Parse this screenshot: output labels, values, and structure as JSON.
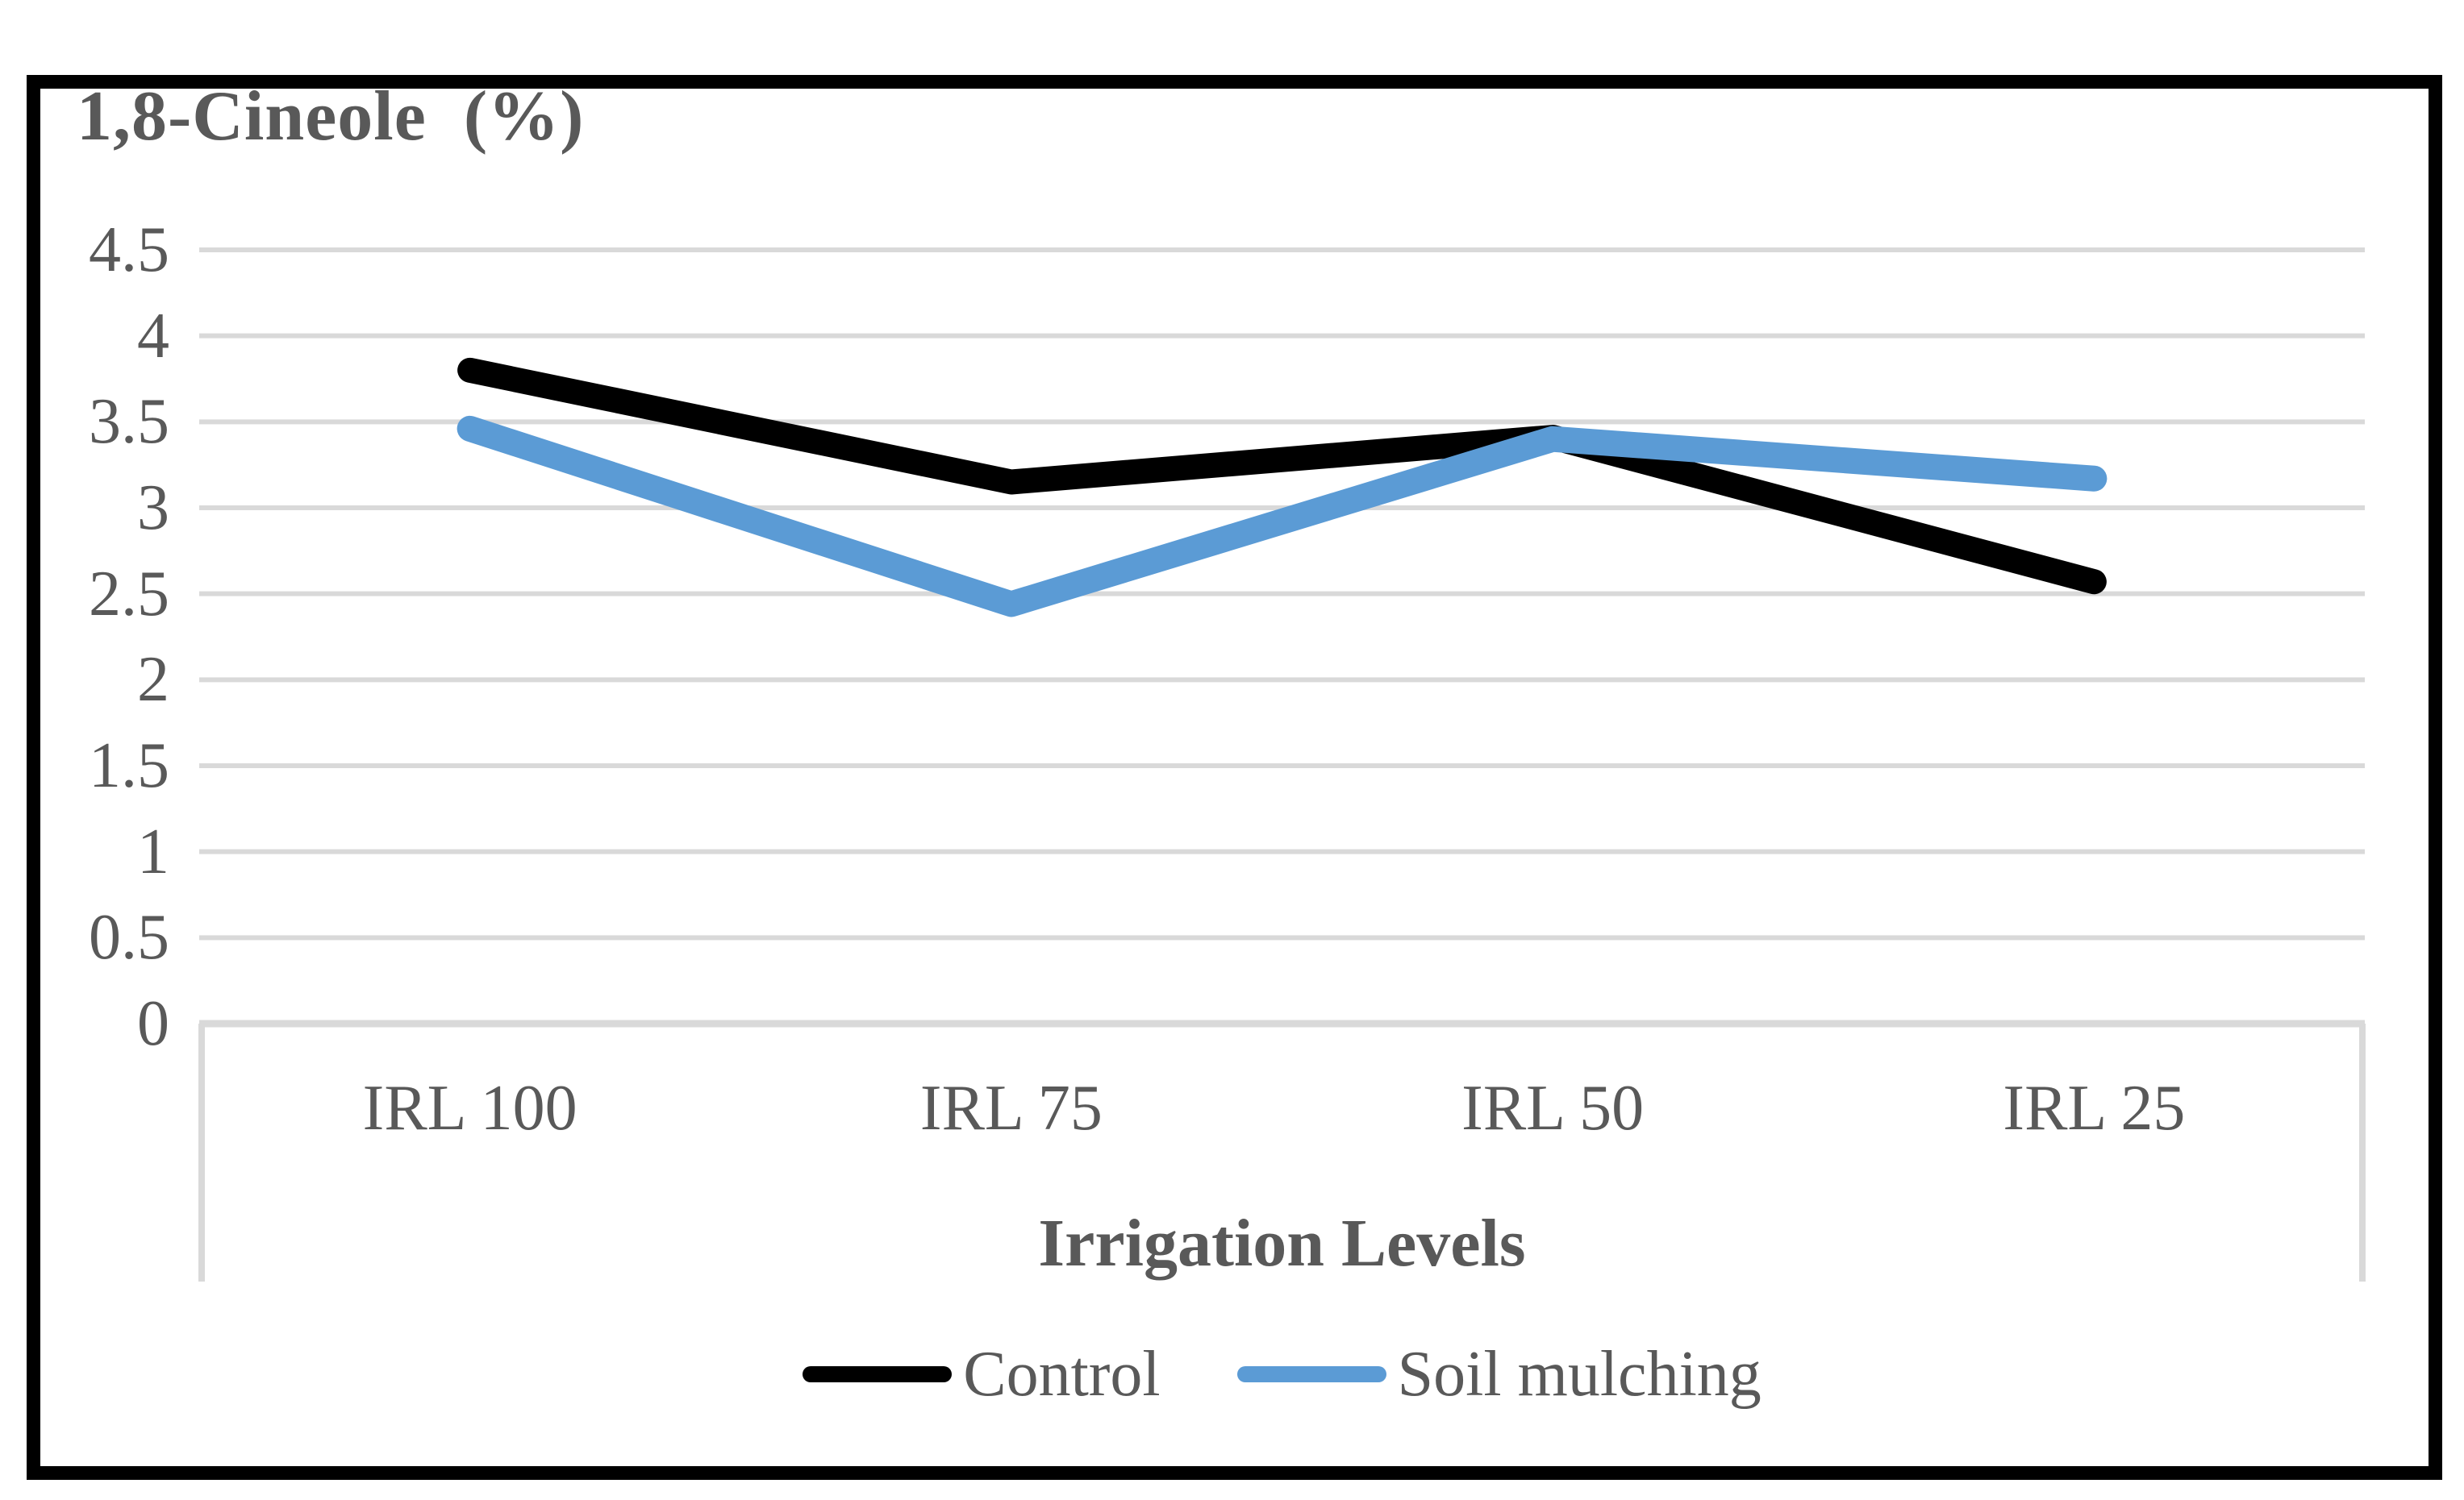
{
  "colors": {
    "background": "#FFFFFF",
    "border": "#000000",
    "text": "#595959",
    "gridline": "#D9D9D9",
    "axis_frame": "#D9D9D9",
    "control_line": "#000000",
    "soil_mulching_line": "#5B9BD5"
  },
  "chart_data": {
    "type": "line",
    "title": "1,8-Cineole  (%)",
    "xlabel": "Irrigation Levels",
    "categories": [
      "IRL 100",
      "IRL 75",
      "IRL 50",
      "IRL 25"
    ],
    "series": [
      {
        "name": "Control",
        "color": "#000000",
        "values": [
          3.8,
          3.15,
          3.41,
          2.57
        ]
      },
      {
        "name": "Soil mulching",
        "color": "#5B9BD5",
        "values": [
          3.46,
          2.44,
          3.4,
          3.17
        ]
      }
    ],
    "ylim": [
      0,
      4.5
    ],
    "ytick_step": 0.5,
    "ytick_labels": [
      "4.5",
      "4",
      "3.5",
      "3",
      "2.5",
      "2",
      "1.5",
      "1",
      "0.5",
      "0"
    ],
    "grid": true,
    "legend_position": "bottom"
  }
}
